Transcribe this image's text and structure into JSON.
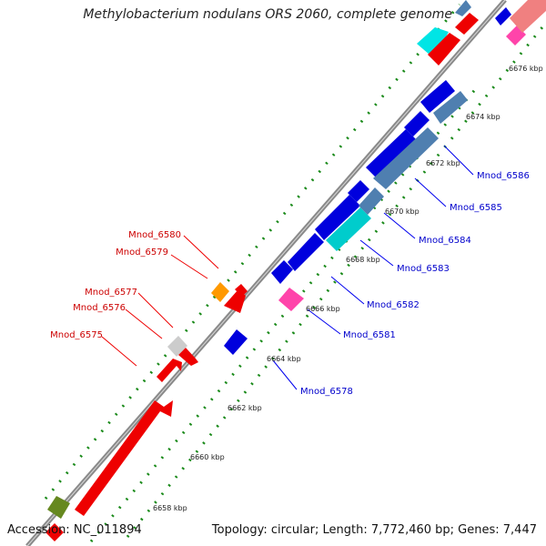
{
  "title": "Methylobacterium nodulans ORS 2060, complete genome",
  "accession": "Accession: NC_011894",
  "summary": "Topology: circular; Length: 7,772,460 bp; Genes: 7,447",
  "colors": {
    "backbone": "#8a8a8a",
    "tick_dots": "#1a8a1a",
    "forward_label": "#cc0000",
    "reverse_label": "#0000cc",
    "scale_label": "#222222"
  },
  "scale_labels": [
    "6658 kbp",
    "6660 kbp",
    "6662 kbp",
    "6664 kbp",
    "6666 kbp",
    "6668 kbp",
    "6670 kbp",
    "6672 kbp",
    "6674 kbp",
    "6676 kbp"
  ],
  "forward_gene_labels": [
    "Mnod_6580",
    "Mnod_6579",
    "Mnod_6577",
    "Mnod_6576",
    "Mnod_6575"
  ],
  "reverse_gene_labels": [
    "Mnod_6586",
    "Mnod_6585",
    "Mnod_6584",
    "Mnod_6583",
    "Mnod_6582",
    "Mnod_6581",
    "Mnod_6578"
  ]
}
